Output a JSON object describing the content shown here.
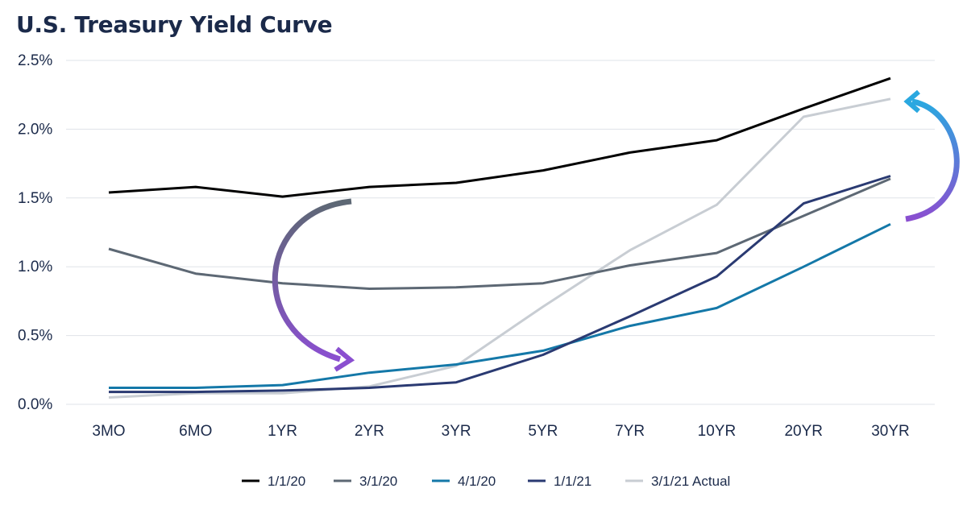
{
  "chart_data": {
    "type": "line",
    "title": "U.S. Treasury Yield Curve",
    "xlabel": "",
    "ylabel": "",
    "categories": [
      "3MO",
      "6MO",
      "1YR",
      "2YR",
      "3YR",
      "5YR",
      "7YR",
      "10YR",
      "20YR",
      "30YR"
    ],
    "y_ticks": [
      "0.0%",
      "0.5%",
      "1.0%",
      "1.5%",
      "2.0%",
      "2.5%"
    ],
    "y_tick_values": [
      0,
      0.5,
      1.0,
      1.5,
      2.0,
      2.5
    ],
    "ylim": [
      0,
      2.5
    ],
    "grid": "horizontal",
    "legend_position": "bottom",
    "series": [
      {
        "name": "1/1/20",
        "color": "#000000",
        "values": [
          1.54,
          1.58,
          1.51,
          1.58,
          1.61,
          1.7,
          1.83,
          1.92,
          2.15,
          2.37
        ]
      },
      {
        "name": "3/1/20",
        "color": "#5d6874",
        "values": [
          1.13,
          0.95,
          0.88,
          0.84,
          0.85,
          0.88,
          1.01,
          1.1,
          1.37,
          1.64
        ]
      },
      {
        "name": "4/1/20",
        "color": "#1478a8",
        "values": [
          0.12,
          0.12,
          0.14,
          0.23,
          0.29,
          0.39,
          0.57,
          0.7,
          1.0,
          1.31
        ]
      },
      {
        "name": "1/1/21",
        "color": "#2a3a72",
        "values": [
          0.09,
          0.09,
          0.1,
          0.12,
          0.16,
          0.36,
          0.64,
          0.93,
          1.46,
          1.66
        ]
      },
      {
        "name": "3/1/21 Actual",
        "color": "#c8cdd3",
        "values": [
          0.05,
          0.08,
          0.08,
          0.13,
          0.28,
          0.71,
          1.12,
          1.45,
          2.09,
          2.22
        ]
      }
    ],
    "annotations": [
      {
        "shape": "curved-arrow",
        "direction": "downward",
        "colors": [
          "#5d6874",
          "#8a4fd0"
        ]
      },
      {
        "shape": "curved-arrow",
        "direction": "upward",
        "colors": [
          "#8a4fd0",
          "#2aa8e0"
        ]
      }
    ]
  }
}
